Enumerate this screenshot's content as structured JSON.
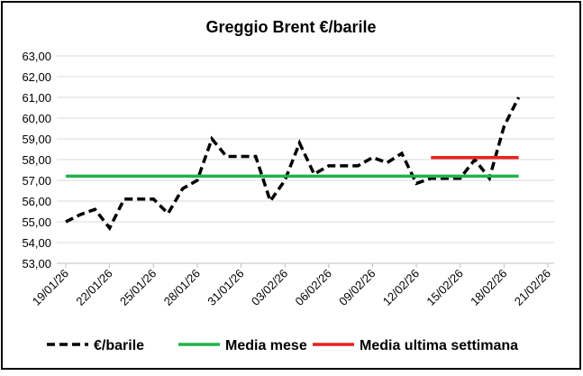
{
  "chart_data": {
    "type": "line",
    "title": "Greggio Brent €/barile",
    "x": [
      "19/01/26",
      "20/01/26",
      "21/01/26",
      "22/01/26",
      "23/01/26",
      "24/01/26",
      "25/01/26",
      "26/01/26",
      "27/01/26",
      "28/01/26",
      "29/01/26",
      "30/01/26",
      "31/01/26",
      "01/02/26",
      "02/02/26",
      "03/02/26",
      "04/02/26",
      "05/02/26",
      "06/02/26",
      "07/02/26",
      "08/02/26",
      "09/02/26",
      "10/02/26",
      "11/02/26",
      "12/02/26",
      "13/02/26",
      "14/02/26",
      "15/02/26",
      "16/02/26",
      "17/02/26",
      "18/02/26",
      "19/02/26"
    ],
    "series": [
      {
        "name": "€/barile",
        "color": "#000000",
        "dash": true,
        "values": [
          55.0,
          55.35,
          55.6,
          54.7,
          56.1,
          56.1,
          56.1,
          55.4,
          56.6,
          57.0,
          59.0,
          58.15,
          58.15,
          58.15,
          56.0,
          57.0,
          58.8,
          57.3,
          57.7,
          57.7,
          57.7,
          58.1,
          57.85,
          58.3,
          56.85,
          57.1,
          57.1,
          57.1,
          58.0,
          57.1,
          59.6,
          61.0
        ]
      },
      {
        "name": "Media mese",
        "color": "#21b24b",
        "dash": false,
        "values": [
          57.2,
          57.2,
          57.2,
          57.2,
          57.2,
          57.2,
          57.2,
          57.2,
          57.2,
          57.2,
          57.2,
          57.2,
          57.2,
          57.2,
          57.2,
          57.2,
          57.2,
          57.2,
          57.2,
          57.2,
          57.2,
          57.2,
          57.2,
          57.2,
          57.2,
          57.2,
          57.2,
          57.2,
          57.2,
          57.2,
          57.2,
          57.2
        ]
      },
      {
        "name": "Media ultima settimana",
        "color": "#e8231f",
        "dash": false,
        "values": [
          null,
          null,
          null,
          null,
          null,
          null,
          null,
          null,
          null,
          null,
          null,
          null,
          null,
          null,
          null,
          null,
          null,
          null,
          null,
          null,
          null,
          null,
          null,
          null,
          null,
          58.1,
          58.1,
          58.1,
          58.1,
          58.1,
          58.1,
          58.1
        ]
      }
    ],
    "xlim": [
      "19/01/26",
      "21/02/26"
    ],
    "xticks": [
      "19/01/26",
      "22/01/26",
      "25/01/26",
      "28/01/26",
      "31/01/26",
      "03/02/26",
      "06/02/26",
      "09/02/26",
      "12/02/26",
      "15/02/26",
      "18/02/26",
      "21/02/26"
    ],
    "ylim": [
      53,
      63
    ],
    "yticks": [
      {
        "value": 53,
        "label": "53,00"
      },
      {
        "value": 54,
        "label": "54,00"
      },
      {
        "value": 55,
        "label": "55,00"
      },
      {
        "value": 56,
        "label": "56,00"
      },
      {
        "value": 57,
        "label": "57,00"
      },
      {
        "value": 58,
        "label": "58,00"
      },
      {
        "value": 59,
        "label": "59,00"
      },
      {
        "value": 60,
        "label": "60,00"
      },
      {
        "value": 61,
        "label": "61,00"
      },
      {
        "value": 62,
        "label": "62,00"
      },
      {
        "value": 63,
        "label": "63,00"
      }
    ],
    "grid": true,
    "legend": "bottom"
  }
}
